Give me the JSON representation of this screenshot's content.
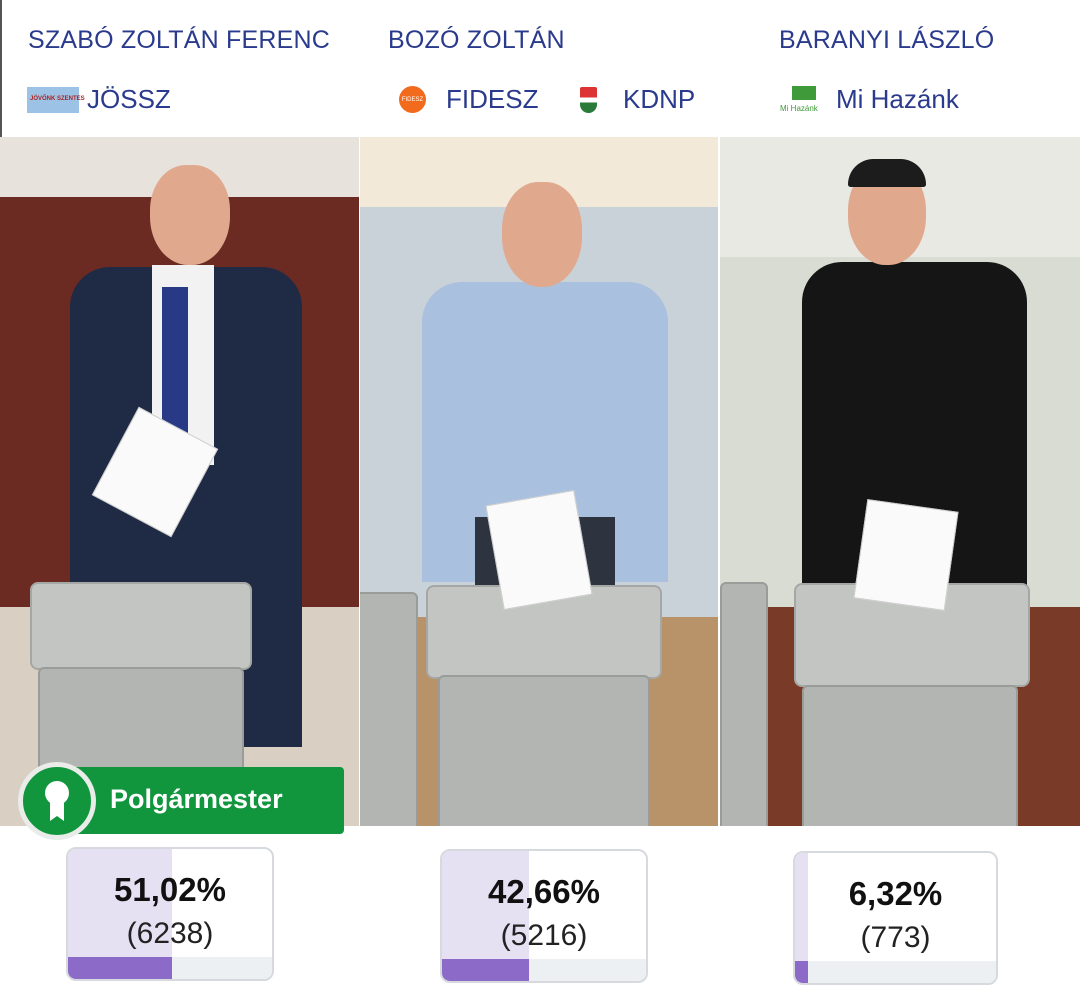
{
  "candidates": [
    {
      "name": "SZABÓ ZOLTÁN FERENC",
      "parties": [
        {
          "label": "JÖSSZ",
          "logo": "jovonk-szentes-logo",
          "logo_text": "JÖVŐNK SZENTES"
        }
      ],
      "percent_label": "51,02%",
      "votes_label": "(6238)",
      "percent": 51.02,
      "winner": true
    },
    {
      "name": "BOZÓ ZOLTÁN",
      "parties": [
        {
          "label": "FIDESZ",
          "logo": "fidesz-logo",
          "logo_text": "FIDESZ"
        },
        {
          "label": "KDNP",
          "logo": "kdnp-shield-logo"
        }
      ],
      "percent_label": "42,66%",
      "votes_label": "(5216)",
      "percent": 42.66,
      "winner": false
    },
    {
      "name": "BARANYI LÁSZLÓ",
      "parties": [
        {
          "label": "Mi Hazánk",
          "logo": "mi-hazank-flag-logo",
          "logo_text": "Mi Hazánk"
        }
      ],
      "percent_label": "6,32%",
      "votes_label": "(773)",
      "percent": 6.32,
      "winner": false
    }
  ],
  "winner_badge": {
    "label": "Polgármester",
    "icon": "award-ribbon-icon"
  },
  "colors": {
    "name_text": "#2a3a8c",
    "badge_green": "#11963e",
    "bar_fill": "#8c6bc8",
    "bar_bg_fill": "#e6e0f3"
  }
}
